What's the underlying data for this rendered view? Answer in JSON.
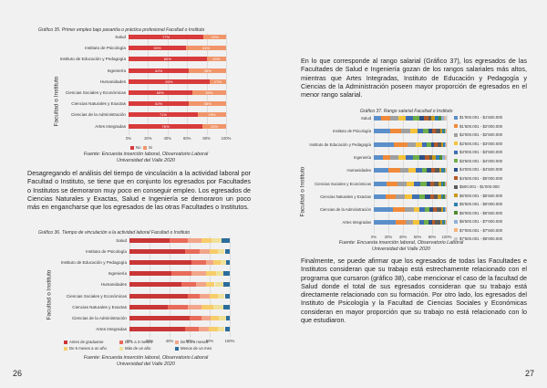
{
  "left": {
    "chart35": {
      "title": "Gráfico 35. Primer empleo bajo pasantía o práctica profesional Facultad o Instituto",
      "ylabel": "Facultad o Instituto",
      "source": [
        "Fuente: Encuesta inserción laboral, Observatorio Laboral",
        "Universidad del Valle 2020"
      ]
    },
    "paragraph": "Desagregando el análisis del tiempo de vinculación a la actividad laboral por Facultad o Instituto, se tiene que en conjunto los egresados por Facultades o Institutos se demoraron muy poco en conseguir empleo. Los egresados de Ciencias Naturales y Exactas, Salud e Ingeniería se demoraron un poco más en engancharse que los egresados de las otras Facultades o Institutos.",
    "chart36": {
      "title": "Gráfico 36. Tiempo de vinculación a la actividad laboral Facultad o Instituto",
      "ylabel": "Facultad o Instituto",
      "source": [
        "Fuente: Encuesta inserción laboral, Observatorio Laboral",
        "Universidad del Valle 2020"
      ]
    },
    "page_number": "26"
  },
  "right": {
    "paragraph1": "En lo que corresponde al rango salarial (Gráfico 37), los egresados de las Facultades de Salud e Ingeniería gozan de los rangos salariales más altos, mientras que Artes Integradas, Instituto de Educación y Pedagogía y Ciencias de la Administración poseen mayor proporción de egresados en el menor rango salarial.",
    "chart37": {
      "title": "Gráfico 37. Rango salarial Facultad o Instituto",
      "ylabel": "Facultad o Instituto",
      "source": [
        "Fuente: Encuesta inserción laboral, Observatorio Laboral",
        "Universidad del Valle 2020"
      ]
    },
    "paragraph2": "Finalmente, se puede afirmar que los egresados de todas las Facultades e Institutos consideran que su trabajo está estrechamente relacionado con el programa que cursaron (gráfico 38), cabe mencionar el caso de la facultad de Salud donde el total de sus egresados consideran que su trabajo está directamente relacionado con su formación. Por otro lado, los egresados del Instituto de Psicología y la Facultad de Ciencias Sociales y Económicas consideran en mayor proporción que su trabajo no está relacionado con lo que estudiaron.",
    "page_number": "27"
  },
  "chart_data": [
    {
      "type": "bar",
      "stacked": true,
      "orientation": "horizontal",
      "title": "Gráfico 35. Primer empleo bajo pasantía o práctica profesional Facultad o Instituto",
      "ylabel": "Facultad o Instituto",
      "categories": [
        "Salud",
        "Instituto de Psicología",
        "Instituto de Educación y Pedagogía",
        "Ingeniería",
        "Humanidades",
        "Ciencias Sociales y Económicas",
        "Ciencias Naturales y Exactas",
        "Ciencias de la Administración",
        "Artes Integradas"
      ],
      "xticks": [
        "0%",
        "20%",
        "40%",
        "60%",
        "80%",
        "100%"
      ],
      "series": [
        {
          "name": "No",
          "color": "#d83b3b",
          "values": [
            77,
            59,
            80,
            62,
            83,
            65,
            62,
            71,
            76
          ],
          "labels": [
            "77%",
            "59%",
            "80%",
            "62%",
            "83%",
            "65%",
            "62%",
            "71%",
            "76%"
          ]
        },
        {
          "name": "Si",
          "color": "#f0956a",
          "values": [
            23,
            41,
            20,
            38,
            17,
            35,
            38,
            29,
            24
          ],
          "labels": [
            "23%",
            "41%",
            "20%",
            "38%",
            "17%",
            "35%",
            "38%",
            "29%",
            "24%"
          ]
        }
      ]
    },
    {
      "type": "bar",
      "stacked": true,
      "orientation": "horizontal",
      "title": "Gráfico 36. Tiempo de vinculación a la actividad laboral Facultad o Instituto",
      "ylabel": "Facultad o Instituto",
      "categories": [
        "Salud",
        "Instituto de Psicología",
        "Instituto de Educación y Pedagogía",
        "Ingeniería",
        "Humanidades",
        "Ciencias Sociales y Económicas",
        "Ciencias Naturales y Exactas",
        "Ciencias de la Administración",
        "Artes Integradas"
      ],
      "xticks": [
        "0%",
        "20%",
        "40%",
        "60%",
        "80%",
        "100%"
      ],
      "series": [
        {
          "name": "Antes de graduarse",
          "color": "#c93636",
          "values": [
            40,
            55,
            62,
            42,
            52,
            58,
            38,
            60,
            55
          ]
        },
        {
          "name": "De 1 a 3 meses",
          "color": "#e86b5a",
          "values": [
            18,
            15,
            14,
            20,
            14,
            12,
            20,
            12,
            14
          ]
        },
        {
          "name": "De 3 a 6 meses",
          "color": "#f2a58a",
          "values": [
            14,
            10,
            8,
            14,
            10,
            10,
            14,
            9,
            10
          ]
        },
        {
          "name": "De 6 meses a un año",
          "color": "#f7cd6a",
          "values": [
            10,
            8,
            7,
            10,
            9,
            8,
            12,
            8,
            9
          ]
        },
        {
          "name": "Más de un año",
          "color": "#f0e19a",
          "values": [
            10,
            7,
            5,
            8,
            9,
            7,
            10,
            7,
            7
          ]
        },
        {
          "name": "Menos de un mes",
          "color": "#2c6d9c",
          "values": [
            8,
            5,
            4,
            6,
            6,
            5,
            6,
            4,
            5
          ]
        }
      ]
    },
    {
      "type": "bar",
      "stacked": true,
      "orientation": "horizontal",
      "title": "Gráfico 37. Rango salarial Facultad o Instituto",
      "ylabel": "Facultad o Instituto",
      "categories": [
        "Salud",
        "Instituto de Psicología",
        "Instituto de Educación y Pedagogía",
        "Ingeniería",
        "Humanidades",
        "Ciencias Sociales y Económicas",
        "Ciencias Naturales y Exactas",
        "Ciencias de la Administración",
        "Artes Integradas"
      ],
      "xticks": [
        "0%",
        "20%",
        "40%",
        "60%",
        "80%",
        "100%"
      ],
      "series": [
        {
          "name": "$1'000.001 - $1'500.000",
          "color": "#5b8fc9",
          "values": [
            10,
            22,
            28,
            12,
            20,
            18,
            16,
            26,
            30
          ]
        },
        {
          "name": "$1'500.001 - $2'000.000",
          "color": "#f08a3a",
          "values": [
            12,
            16,
            18,
            10,
            16,
            15,
            14,
            16,
            14
          ]
        },
        {
          "name": "$2'000.001 - $2'500.000",
          "color": "#a0a0a0",
          "values": [
            12,
            12,
            12,
            12,
            12,
            12,
            12,
            12,
            10
          ]
        },
        {
          "name": "$2'500.001 - $3'000.000",
          "color": "#f5c23a",
          "values": [
            10,
            10,
            8,
            10,
            10,
            10,
            10,
            8,
            8
          ]
        },
        {
          "name": "$3'000.001 - $3'500.000",
          "color": "#3f6fb2",
          "values": [
            10,
            8,
            7,
            10,
            8,
            9,
            10,
            7,
            7
          ]
        },
        {
          "name": "$3'500.001 - $4'000.000",
          "color": "#6fae4a",
          "values": [
            8,
            7,
            6,
            9,
            7,
            8,
            8,
            6,
            6
          ]
        },
        {
          "name": "$4'000.001 - $4'500.000",
          "color": "#2a4f86",
          "values": [
            7,
            5,
            4,
            7,
            6,
            6,
            7,
            5,
            5
          ]
        },
        {
          "name": "$4'500.001 - $5'000.000",
          "color": "#b45a2a",
          "values": [
            6,
            5,
            4,
            6,
            5,
            5,
            6,
            5,
            4
          ]
        },
        {
          "name": "$500.001 - $1'000.000",
          "color": "#5a5a5a",
          "values": [
            4,
            6,
            6,
            4,
            6,
            6,
            5,
            6,
            7
          ]
        },
        {
          "name": "$5'000.001 - $5'500.000",
          "color": "#c89a1a",
          "values": [
            5,
            3,
            2,
            5,
            3,
            3,
            4,
            3,
            3
          ]
        },
        {
          "name": "$5'500.001 - $6'000.000",
          "color": "#2f7fb0",
          "values": [
            5,
            2,
            2,
            5,
            3,
            3,
            3,
            2,
            2
          ]
        },
        {
          "name": "$6'000.001 - $6'500.000",
          "color": "#4f8a2f",
          "values": [
            4,
            2,
            1,
            4,
            2,
            2,
            2,
            1,
            2
          ]
        },
        {
          "name": "$6'500.001 - $7'000.000",
          "color": "#8fb0d8",
          "values": [
            3,
            1,
            1,
            3,
            1,
            2,
            2,
            1,
            1
          ]
        },
        {
          "name": "$7'000.001 - $7'500.000",
          "color": "#f5b37a",
          "values": [
            2,
            1,
            1,
            2,
            1,
            1,
            1,
            1,
            1
          ]
        },
        {
          "name": "$7'500.001 - $8'000.000",
          "color": "#c8c8c8",
          "values": [
            2,
            0,
            0,
            1,
            0,
            0,
            0,
            0,
            0
          ]
        }
      ]
    }
  ]
}
